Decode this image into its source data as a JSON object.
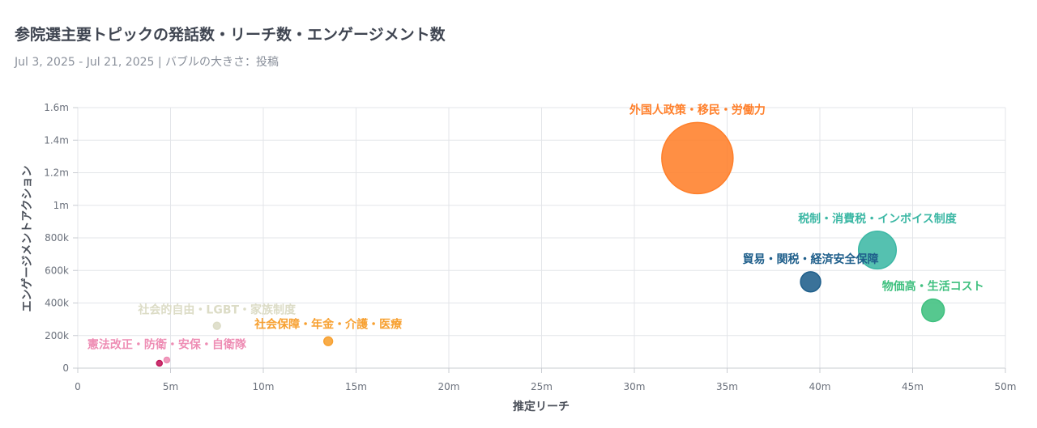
{
  "header": {
    "title": "参院選主要トピックの発話数・リーチ数・エンゲージメント数",
    "subtitle": "Jul 3, 2025 - Jul 21, 2025 | バブルの大きさ：投稿"
  },
  "chart_data": {
    "type": "scatter",
    "xlabel": "推定リーチ",
    "ylabel": "エンゲージメントアクション",
    "xlim": [
      0,
      50000000
    ],
    "ylim": [
      0,
      1600000
    ],
    "x_ticks": [
      "0",
      "5m",
      "10m",
      "15m",
      "20m",
      "25m",
      "30m",
      "35m",
      "40m",
      "45m",
      "50m"
    ],
    "y_ticks": [
      "0",
      "200k",
      "400k",
      "600k",
      "800k",
      "1m",
      "1.2m",
      "1.4m",
      "1.6m"
    ],
    "grid": true,
    "series": [
      {
        "name": "外国人政策・移民・労働力",
        "x": 33400000,
        "y": 1290000,
        "size": 100,
        "color": "#ff7f2a"
      },
      {
        "name": "税制・消費税・インボイス制度",
        "x": 43100000,
        "y": 725000,
        "size": 28,
        "color": "#3db8a5"
      },
      {
        "name": "貿易・関税・経済安全保障",
        "x": 39500000,
        "y": 530000,
        "size": 8,
        "color": "#1f5f8b"
      },
      {
        "name": "物価高・生活コスト",
        "x": 46100000,
        "y": 355000,
        "size": 10,
        "color": "#3fc07f"
      },
      {
        "name": "社会的自由・LGBT・家族制度",
        "x": 7500000,
        "y": 260000,
        "size": 1.0,
        "color": "#dcdcc6"
      },
      {
        "name": "社会保障・年金・介護・医療",
        "x": 13500000,
        "y": 165000,
        "size": 1.5,
        "color": "#f7a030"
      },
      {
        "name": "憲法改正・防衛・安保・自衛隊",
        "x": 4800000,
        "y": 50000,
        "size": 0.25,
        "color": "#ee8db4"
      },
      {
        "name": "",
        "x": 4400000,
        "y": 30000,
        "size": 0.25,
        "color": "#c2185b"
      }
    ]
  }
}
